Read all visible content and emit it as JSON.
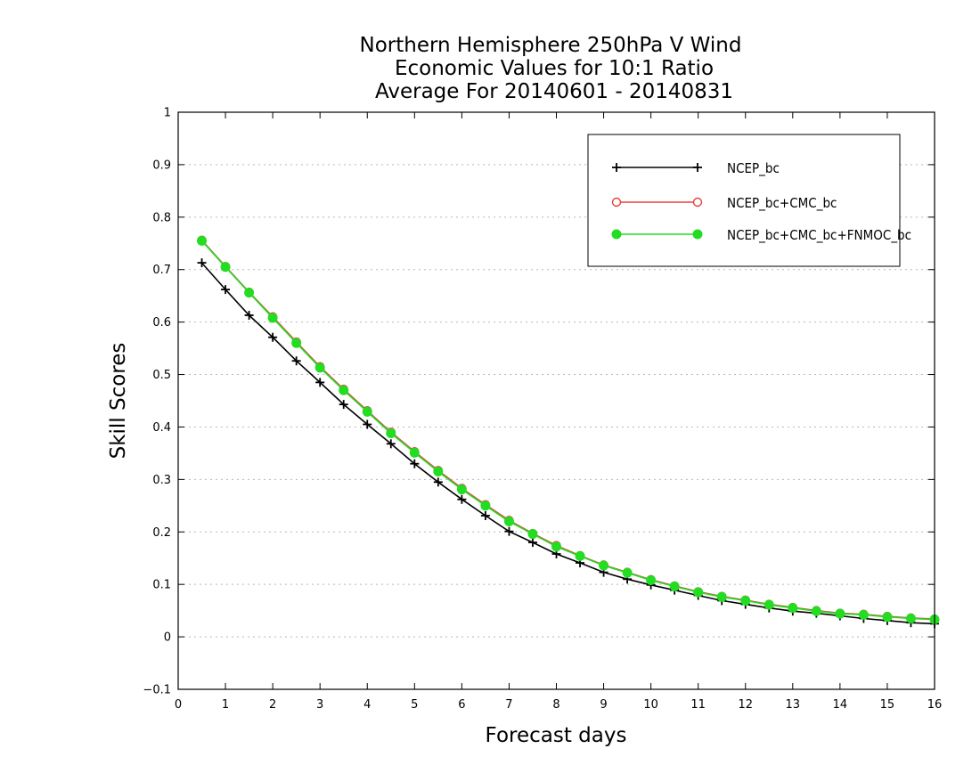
{
  "chart_data": {
    "type": "line",
    "title": [
      "Northern Hemisphere 250hPa V Wind",
      "Economic Values for 10:1 Ratio",
      "Average For 20140601 - 20140831"
    ],
    "xlabel": "Forecast days",
    "ylabel": "Skill Scores",
    "xlim": [
      0,
      16
    ],
    "ylim": [
      -0.1,
      1
    ],
    "xticks": [
      "0",
      "1",
      "2",
      "3",
      "4",
      "5",
      "6",
      "7",
      "8",
      "9",
      "10",
      "11",
      "12",
      "13",
      "14",
      "15",
      "16"
    ],
    "yticks": [
      "−0.1",
      "0",
      "0.1",
      "0.2",
      "0.3",
      "0.4",
      "0.5",
      "0.6",
      "0.7",
      "0.8",
      "0.9",
      "1"
    ],
    "grid": "horizontal dotted",
    "legend_position": "top-right",
    "x": [
      0.5,
      1,
      1.5,
      2,
      2.5,
      3,
      3.5,
      4,
      4.5,
      5,
      5.5,
      6,
      6.5,
      7,
      7.5,
      8,
      8.5,
      9,
      9.5,
      10,
      10.5,
      11,
      11.5,
      12,
      12.5,
      13,
      13.5,
      14,
      14.5,
      15,
      15.5,
      16
    ],
    "series": [
      {
        "name": "NCEP_bc",
        "color": "#000000",
        "marker": "plus",
        "values": [
          0.713,
          0.662,
          0.613,
          0.571,
          0.526,
          0.485,
          0.443,
          0.405,
          0.368,
          0.33,
          0.295,
          0.262,
          0.231,
          0.201,
          0.18,
          0.158,
          0.141,
          0.123,
          0.11,
          0.099,
          0.089,
          0.079,
          0.069,
          0.062,
          0.055,
          0.049,
          0.045,
          0.04,
          0.035,
          0.031,
          0.027,
          0.025
        ]
      },
      {
        "name": "NCEP_bc+CMC_bc",
        "color": "#e8403a",
        "marker": "open-circle",
        "values": [
          0.756,
          0.706,
          0.657,
          0.61,
          0.562,
          0.515,
          0.472,
          0.431,
          0.39,
          0.353,
          0.317,
          0.283,
          0.252,
          0.222,
          0.197,
          0.174,
          0.155,
          0.137,
          0.123,
          0.109,
          0.097,
          0.086,
          0.077,
          0.07,
          0.062,
          0.056,
          0.05,
          0.045,
          0.043,
          0.039,
          0.036,
          0.034
        ]
      },
      {
        "name": "NCEP_bc+CMC_bc+FNMOC_bc",
        "color": "#22dd22",
        "marker": "filled-circle",
        "values": [
          0.755,
          0.705,
          0.656,
          0.608,
          0.56,
          0.513,
          0.47,
          0.429,
          0.388,
          0.351,
          0.315,
          0.281,
          0.25,
          0.22,
          0.196,
          0.172,
          0.154,
          0.136,
          0.122,
          0.108,
          0.096,
          0.085,
          0.076,
          0.069,
          0.061,
          0.055,
          0.049,
          0.044,
          0.042,
          0.038,
          0.035,
          0.033
        ]
      }
    ]
  }
}
